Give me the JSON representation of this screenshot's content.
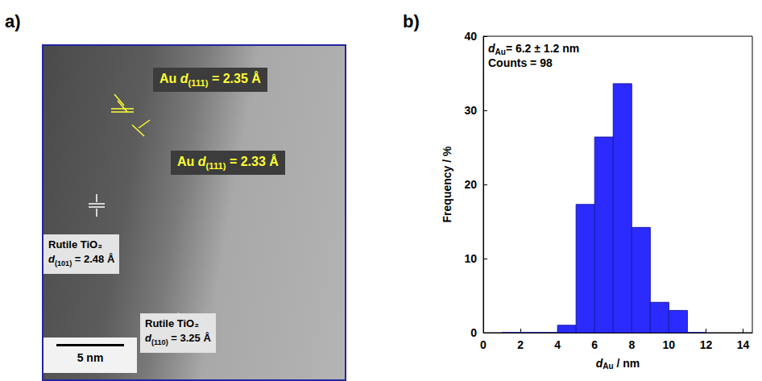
{
  "figure": {
    "panel_labels": [
      "a)",
      "b)"
    ]
  },
  "micrograph": {
    "annotations": [
      {
        "material": "Au",
        "symbol": "d",
        "subscript": "(111)",
        "text": " = 2.35 Å"
      },
      {
        "material": "Au",
        "symbol": "d",
        "subscript": "(111)",
        "text": " = 2.33 Å"
      },
      {
        "material": "Rutile TiO₂",
        "symbol": "d",
        "subscript": "(101)",
        "text": " = 2.48 Å"
      },
      {
        "material": "Rutile TiO₂",
        "symbol": "d",
        "subscript": "(110)",
        "text": " = 3.25 Å"
      }
    ],
    "scale_bar": "5 nm"
  },
  "chart_data": {
    "type": "histogram",
    "bins": [
      1,
      2,
      3,
      4,
      5,
      6,
      7,
      8,
      9,
      10,
      11,
      12
    ],
    "counts": [
      0,
      0,
      0,
      1,
      17.3,
      26.4,
      33.6,
      14.2,
      4.1,
      3.0,
      0
    ],
    "color": "#2b2bff",
    "xlim": [
      0,
      14.5
    ],
    "xticks": [
      0,
      2,
      4,
      6,
      8,
      10,
      12,
      14
    ],
    "ylim": [
      0,
      40
    ],
    "yticks": [
      0,
      10,
      20,
      30,
      40
    ],
    "x_label": {
      "symbol": "d",
      "subscript": "Au",
      "text": " / nm"
    },
    "y_label": "Frequency / %",
    "annotations": [
      {
        "symbol": "d",
        "subscript": "Au",
        "text": "= 6.2 ± 1.2 nm"
      },
      {
        "text": "Counts = 98"
      }
    ]
  }
}
